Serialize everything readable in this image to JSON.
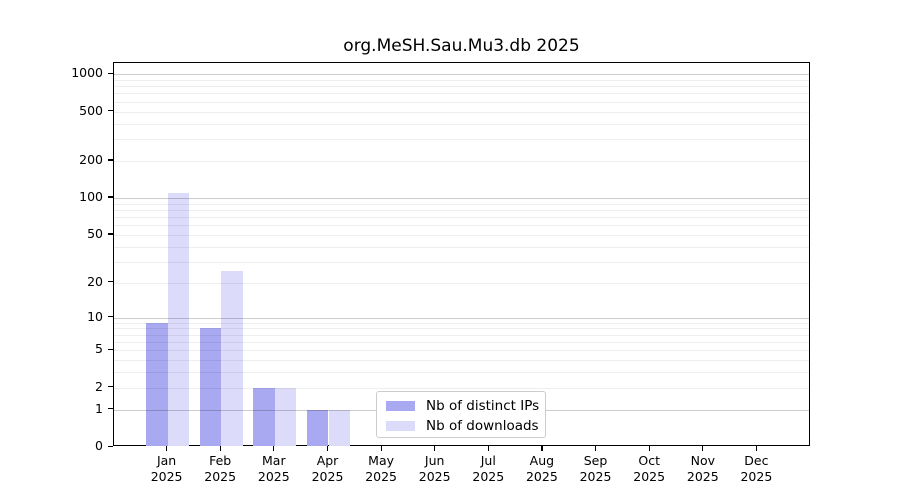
{
  "figure": {
    "background": "#ffffff"
  },
  "chart_data": {
    "type": "bar",
    "title": "org.MeSH.Sau.Mu3.db 2025",
    "categories": [
      "Jan",
      "Feb",
      "Mar",
      "Apr",
      "May",
      "Jun",
      "Jul",
      "Aug",
      "Sep",
      "Oct",
      "Nov",
      "Dec"
    ],
    "year": "2025",
    "series": [
      {
        "name": "Nb of distinct IPs",
        "color": "#a9a9f1",
        "values": [
          9,
          8,
          2,
          1,
          0,
          0,
          0,
          0,
          0,
          0,
          0,
          0
        ]
      },
      {
        "name": "Nb of downloads",
        "color": "#dcdcfa",
        "values": [
          110,
          25,
          2,
          1,
          0,
          0,
          0,
          0,
          0,
          0,
          0,
          0
        ]
      }
    ],
    "xlabel": "",
    "ylabel": "",
    "yscale": "log1p",
    "ylim": [
      0,
      1230
    ],
    "y_ticks": [
      0,
      1,
      2,
      5,
      10,
      20,
      50,
      100,
      200,
      500,
      1000
    ],
    "y_major_gridlines": [
      1,
      10,
      100,
      1000
    ],
    "y_minor_gridlines": [
      2,
      3,
      4,
      5,
      6,
      7,
      8,
      9,
      20,
      30,
      40,
      50,
      60,
      70,
      80,
      90,
      200,
      300,
      400,
      500,
      600,
      700,
      800,
      900
    ],
    "grid": "on",
    "legend_position": "lower-center",
    "colors": {
      "spine": "#000000",
      "major_grid": "#cccccc",
      "minor_grid": "#ececec",
      "text": "#000000"
    }
  }
}
